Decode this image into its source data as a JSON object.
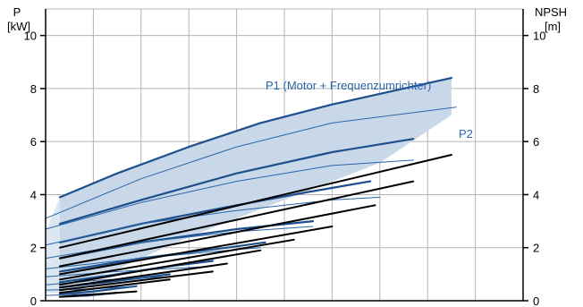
{
  "chart_data": {
    "type": "line",
    "left_axis": {
      "label_line1": "P",
      "label_line2": "[kW]",
      "ylim": [
        0,
        11
      ],
      "ticks": [
        0,
        2,
        4,
        6,
        8,
        10
      ],
      "tick_labels": [
        "0",
        "2",
        "4",
        "6",
        "8",
        "10"
      ]
    },
    "right_axis": {
      "label_line1": "NPSH",
      "label_line2": "[m]",
      "ylim": [
        0,
        11
      ],
      "ticks": [
        0,
        2,
        4,
        6,
        8,
        10
      ],
      "tick_labels": [
        "0",
        "2",
        "4",
        "6",
        "8",
        "10"
      ]
    },
    "xlim": [
      0,
      10
    ],
    "grid": true,
    "annotations": {
      "p1": "P1 (Motor + Frequenzumrichter)",
      "p2": "P2"
    },
    "colors": {
      "area": "#c9d8e8",
      "p1": "#1d4f8c",
      "p2": "#2a65a8",
      "npsh": "#000000",
      "label": "#2a65a8",
      "grid": "#b4b4b4"
    },
    "series": [
      {
        "type": "area",
        "polygon": [
          [
            0.3,
            2.5
          ],
          [
            0.3,
            3.9
          ],
          [
            1.5,
            4.8
          ],
          [
            3,
            5.8
          ],
          [
            4.5,
            6.7
          ],
          [
            6,
            7.4
          ],
          [
            7.5,
            8.0
          ],
          [
            8.5,
            8.4
          ],
          [
            8.5,
            7.0
          ],
          [
            7.0,
            5.2
          ],
          [
            5.0,
            3.8
          ],
          [
            3.0,
            2.4
          ],
          [
            1.5,
            1.2
          ],
          [
            0.3,
            0.3
          ],
          [
            0,
            0.3
          ],
          [
            0,
            2.8
          ]
        ]
      },
      {
        "type": "area-light",
        "polygon": [
          [
            0,
            2.6
          ],
          [
            0.3,
            3.9
          ],
          [
            0.3,
            0.3
          ],
          [
            0,
            0.3
          ]
        ]
      },
      {
        "type": "p1",
        "x": [
          0.3,
          1.5,
          3,
          4.5,
          6,
          7.5,
          8.5
        ],
        "y": [
          3.9,
          4.8,
          5.8,
          6.7,
          7.4,
          8.0,
          8.4
        ]
      },
      {
        "type": "p1",
        "x": [
          0.3,
          2,
          4,
          6,
          7.7
        ],
        "y": [
          2.9,
          3.8,
          4.8,
          5.6,
          6.1
        ]
      },
      {
        "type": "p1",
        "x": [
          0.3,
          2,
          4,
          5.5,
          6.8
        ],
        "y": [
          2.2,
          2.9,
          3.6,
          4.1,
          4.5
        ]
      },
      {
        "type": "p1",
        "x": [
          0.3,
          2,
          4,
          5.6
        ],
        "y": [
          1.6,
          2.2,
          2.7,
          3.0
        ]
      },
      {
        "type": "p1",
        "x": [
          0.3,
          2,
          3.8,
          4.6
        ],
        "y": [
          1.1,
          1.6,
          2.0,
          2.2
        ]
      },
      {
        "type": "p1",
        "x": [
          0.3,
          1.5,
          2.6,
          3.5
        ],
        "y": [
          0.7,
          1.0,
          1.3,
          1.5
        ]
      },
      {
        "type": "p1",
        "x": [
          0.3,
          1.3,
          2.6
        ],
        "y": [
          0.5,
          0.7,
          1.0
        ]
      },
      {
        "type": "p1",
        "x": [
          0.3,
          1.0,
          1.9
        ],
        "y": [
          0.25,
          0.35,
          0.55
        ]
      },
      {
        "type": "p1",
        "x": [
          0.3,
          0.9,
          1.5
        ],
        "y": [
          0.15,
          0.2,
          0.3
        ]
      },
      {
        "type": "p2",
        "x": [
          0,
          2,
          4,
          6,
          8.6
        ],
        "y": [
          3.1,
          4.6,
          5.8,
          6.7,
          7.3
        ]
      },
      {
        "type": "p2",
        "x": [
          0,
          2,
          4,
          6,
          7.7
        ],
        "y": [
          2.7,
          3.7,
          4.5,
          5.1,
          5.3
        ]
      },
      {
        "type": "p2",
        "x": [
          0,
          2,
          4,
          6,
          7.0
        ],
        "y": [
          2.1,
          2.9,
          3.4,
          3.8,
          3.9
        ]
      },
      {
        "type": "p2",
        "x": [
          0,
          2,
          4,
          5.6
        ],
        "y": [
          1.6,
          2.2,
          2.6,
          2.8
        ]
      },
      {
        "type": "p2",
        "x": [
          0,
          2,
          3.8,
          4.5
        ],
        "y": [
          1.2,
          1.6,
          1.9,
          2.0
        ]
      },
      {
        "type": "p2",
        "x": [
          0,
          1.5,
          2.5,
          3.5
        ],
        "y": [
          0.9,
          1.1,
          1.2,
          1.3
        ]
      },
      {
        "type": "p2",
        "x": [
          0,
          1.3,
          2.6
        ],
        "y": [
          0.6,
          0.8,
          0.9
        ]
      },
      {
        "type": "p2",
        "x": [
          0,
          1.0,
          1.9
        ],
        "y": [
          0.4,
          0.45,
          0.55
        ]
      },
      {
        "type": "p2",
        "x": [
          0,
          0.8,
          1.5
        ],
        "y": [
          0.2,
          0.25,
          0.3
        ]
      },
      {
        "type": "npsh",
        "x": [
          0.3,
          8.5
        ],
        "y": [
          2.0,
          5.5
        ]
      },
      {
        "type": "npsh",
        "x": [
          0.3,
          7.7
        ],
        "y": [
          1.6,
          4.5
        ]
      },
      {
        "type": "npsh",
        "x": [
          0.3,
          6.9
        ],
        "y": [
          1.3,
          3.6
        ]
      },
      {
        "type": "npsh",
        "x": [
          0.3,
          6.0
        ],
        "y": [
          1.0,
          2.8
        ]
      },
      {
        "type": "npsh",
        "x": [
          0.3,
          5.2
        ],
        "y": [
          0.8,
          2.3
        ]
      },
      {
        "type": "npsh",
        "x": [
          0.3,
          4.5
        ],
        "y": [
          0.6,
          1.9
        ]
      },
      {
        "type": "npsh",
        "x": [
          0.3,
          3.8
        ],
        "y": [
          0.5,
          1.4
        ]
      },
      {
        "type": "npsh",
        "x": [
          0.3,
          3.5
        ],
        "y": [
          0.4,
          1.1
        ]
      },
      {
        "type": "npsh",
        "x": [
          0.3,
          2.6
        ],
        "y": [
          0.3,
          0.8
        ]
      },
      {
        "type": "npsh",
        "x": [
          0.3,
          1.9
        ],
        "y": [
          0.15,
          0.35
        ]
      }
    ]
  }
}
